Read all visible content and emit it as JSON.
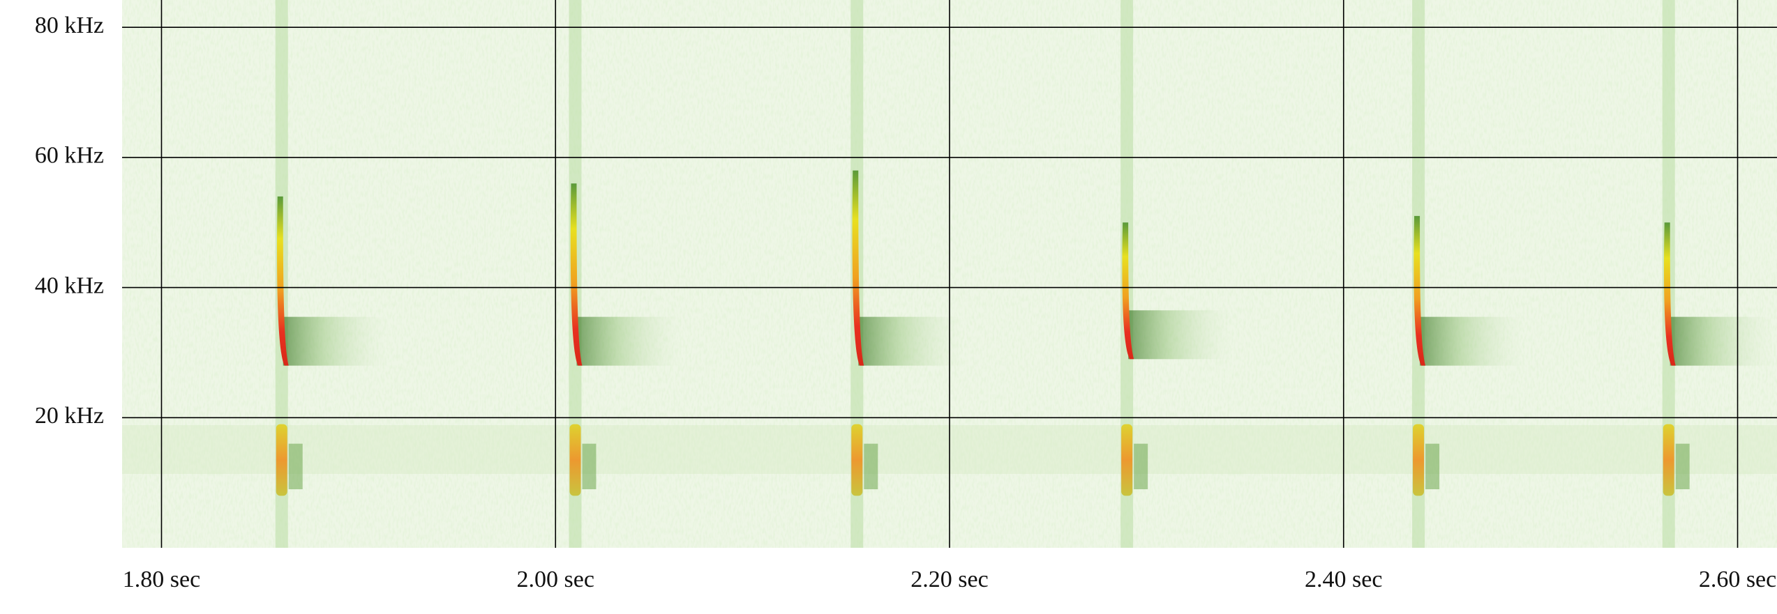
{
  "chart_data": {
    "type": "spectrogram",
    "xlim": [
      1.78,
      2.62
    ],
    "ylim": [
      0,
      84.2
    ],
    "xticks": [
      {
        "value": 1.8,
        "label": "1.80 sec"
      },
      {
        "value": 2.0,
        "label": "2.00 sec"
      },
      {
        "value": 2.2,
        "label": "2.20 sec"
      },
      {
        "value": 2.4,
        "label": "2.40 sec"
      },
      {
        "value": 2.6,
        "label": "2.60 sec"
      }
    ],
    "yticks": [
      {
        "value": 20,
        "label": "20 kHz"
      },
      {
        "value": 40,
        "label": "40 kHz"
      },
      {
        "value": 60,
        "label": "60 kHz"
      },
      {
        "value": 80,
        "label": "80 kHz"
      }
    ],
    "grid": true,
    "calls": {
      "x": [
        1.861,
        2.01,
        2.153,
        2.29,
        2.438,
        2.565
      ],
      "fmax": [
        54,
        56,
        58,
        50,
        51,
        50
      ],
      "fmin": [
        28,
        28,
        28,
        29,
        28,
        28
      ]
    }
  }
}
